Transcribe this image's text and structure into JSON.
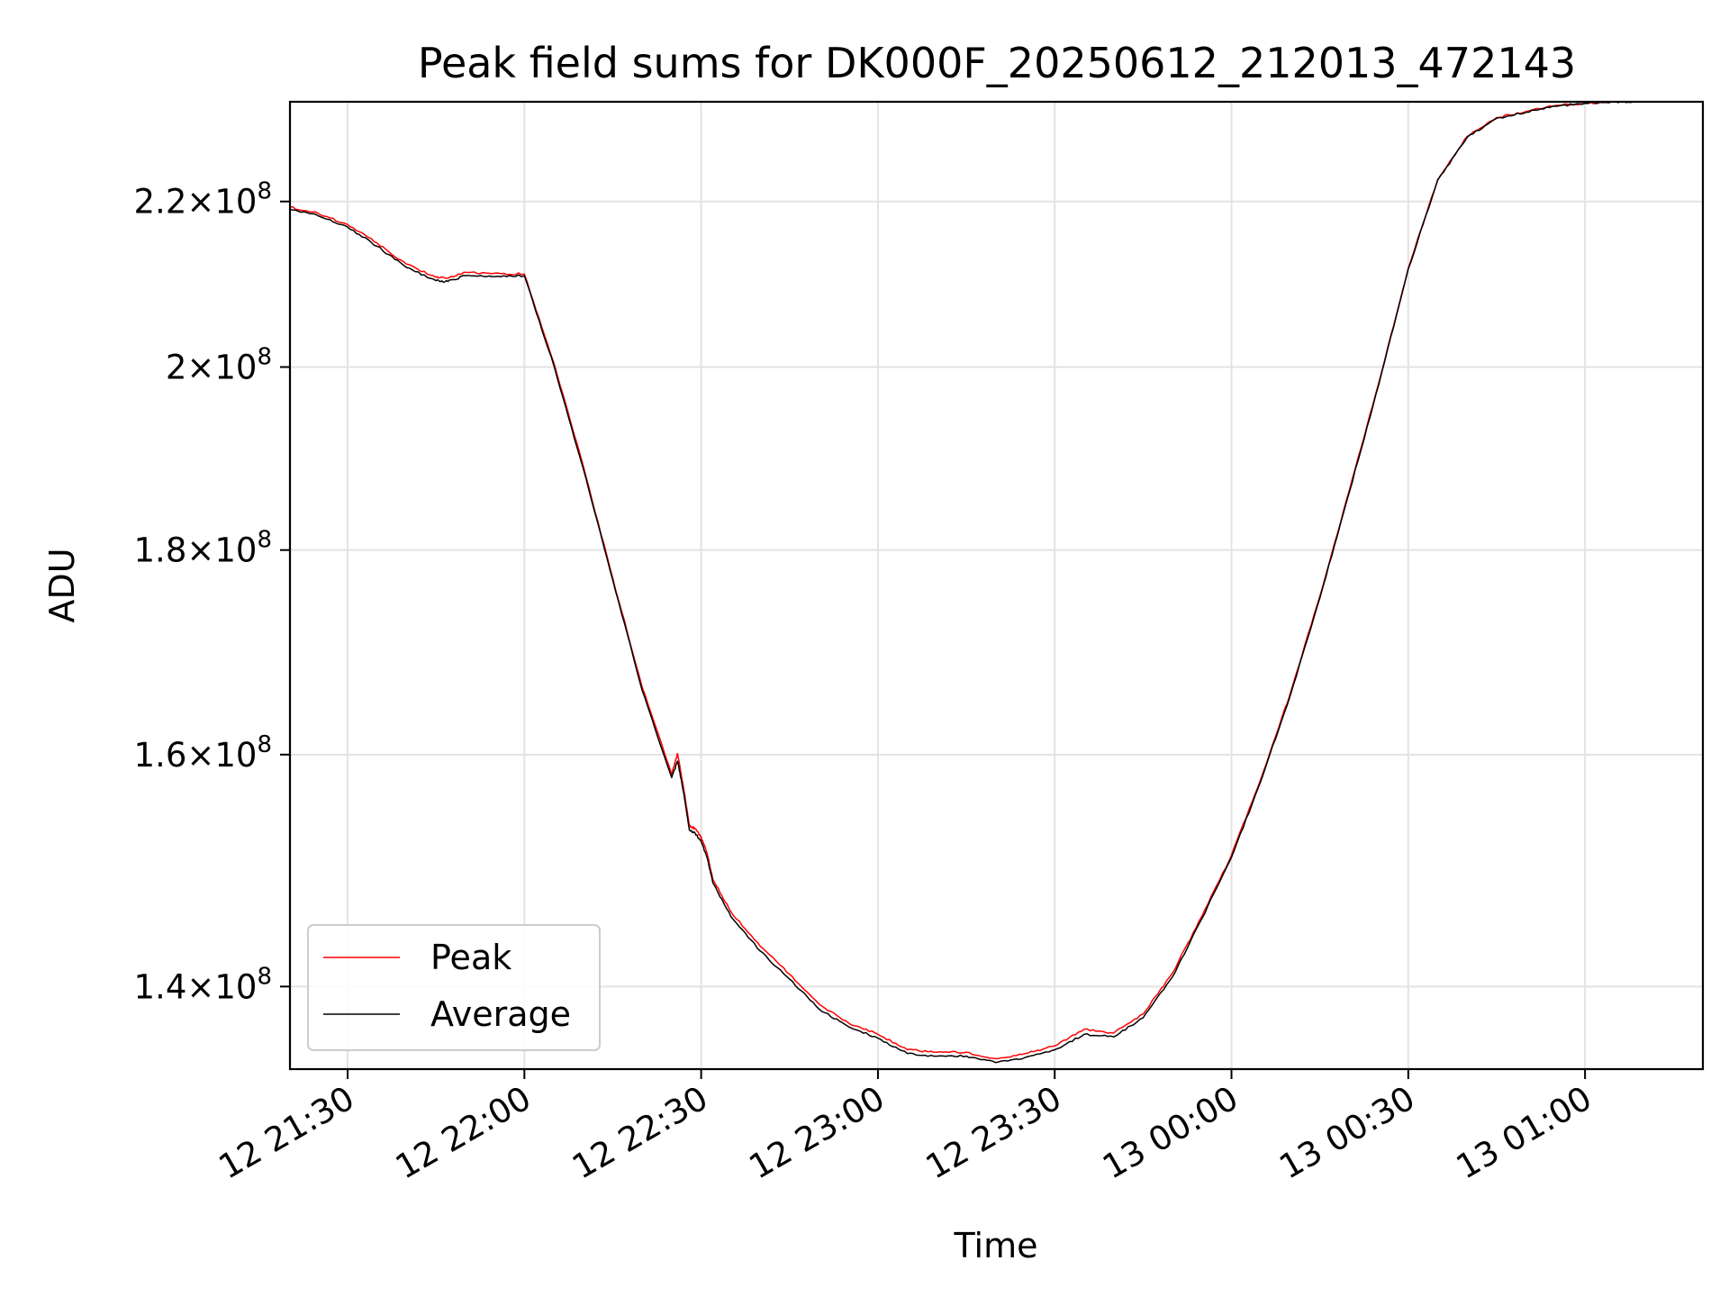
{
  "chart_data": {
    "type": "line",
    "title": "Peak field sums for DK000F_20250612_212013_472143",
    "xlabel": "Time",
    "ylabel": "ADU",
    "y_scale": "log",
    "grid": true,
    "legend_placement": "lower-left",
    "xlim": [
      "2025-06-12 21:20:13",
      "2025-06-13 01:20:00"
    ],
    "ylim": [
      133500000,
      233000000
    ],
    "x_ticks": [
      {
        "value": "2025-06-12 21:30",
        "label": "12 21:30"
      },
      {
        "value": "2025-06-12 22:00",
        "label": "12 22:00"
      },
      {
        "value": "2025-06-12 22:30",
        "label": "12 22:30"
      },
      {
        "value": "2025-06-12 23:00",
        "label": "12 23:00"
      },
      {
        "value": "2025-06-12 23:30",
        "label": "12 23:30"
      },
      {
        "value": "2025-06-13 00:00",
        "label": "13 00:00"
      },
      {
        "value": "2025-06-13 00:30",
        "label": "13 00:30"
      },
      {
        "value": "2025-06-13 01:00",
        "label": "13 01:00"
      }
    ],
    "y_ticks": [
      {
        "value": 140000000,
        "mantissa": "1.4",
        "exponent": "8"
      },
      {
        "value": 160000000,
        "mantissa": "1.6",
        "exponent": "8"
      },
      {
        "value": 180000000,
        "mantissa": "1.8",
        "exponent": "8"
      },
      {
        "value": 200000000,
        "mantissa": "2",
        "exponent": "8"
      },
      {
        "value": 220000000,
        "mantissa": "2.2",
        "exponent": "8"
      }
    ],
    "x": [
      "2025-06-12 21:20:13",
      "2025-06-12 21:25",
      "2025-06-12 21:30",
      "2025-06-12 21:35",
      "2025-06-12 21:40",
      "2025-06-12 21:45",
      "2025-06-12 21:47",
      "2025-06-12 21:50",
      "2025-06-12 21:55",
      "2025-06-12 22:00",
      "2025-06-12 22:05",
      "2025-06-12 22:10",
      "2025-06-12 22:15",
      "2025-06-12 22:20",
      "2025-06-12 22:25",
      "2025-06-12 22:26",
      "2025-06-12 22:27",
      "2025-06-12 22:28",
      "2025-06-12 22:29",
      "2025-06-12 22:30",
      "2025-06-12 22:31",
      "2025-06-12 22:32",
      "2025-06-12 22:35",
      "2025-06-12 22:40",
      "2025-06-12 22:45",
      "2025-06-12 22:50",
      "2025-06-12 22:55",
      "2025-06-12 23:00",
      "2025-06-12 23:05",
      "2025-06-12 23:10",
      "2025-06-12 23:15",
      "2025-06-12 23:20",
      "2025-06-12 23:25",
      "2025-06-12 23:30",
      "2025-06-12 23:35",
      "2025-06-12 23:40",
      "2025-06-12 23:45",
      "2025-06-12 23:50",
      "2025-06-12 23:55",
      "2025-06-13 00:00",
      "2025-06-13 00:05",
      "2025-06-13 00:10",
      "2025-06-13 00:15",
      "2025-06-13 00:20",
      "2025-06-13 00:25",
      "2025-06-13 00:30",
      "2025-06-13 00:35",
      "2025-06-13 00:40",
      "2025-06-13 00:45",
      "2025-06-13 00:50",
      "2025-06-13 00:55",
      "2025-06-13 01:00",
      "2025-06-13 01:05",
      "2025-06-13 01:08"
    ],
    "series": [
      {
        "name": "Peak",
        "color": "#ff0000",
        "values": [
          219300000,
          218500000,
          217100000,
          214800000,
          212200000,
          210600000,
          210500000,
          211200000,
          211100000,
          211000000,
          200500000,
          188900000,
          177100000,
          166300000,
          158200000,
          160100000,
          157000000,
          153600000,
          153300000,
          152600000,
          151200000,
          148900000,
          146200000,
          143300000,
          141000000,
          138600000,
          137100000,
          136200000,
          135000000,
          134800000,
          134800000,
          134300000,
          134700000,
          135300000,
          136600000,
          136300000,
          137800000,
          141100000,
          145800000,
          151000000,
          157800000,
          165800000,
          175300000,
          186300000,
          198200000,
          211700000,
          222800000,
          228400000,
          230900000,
          231700000,
          232500000,
          232800000,
          233000000,
          233000000
        ]
      },
      {
        "name": "Average",
        "color": "#000000",
        "values": [
          219000000,
          218200000,
          216800000,
          214400000,
          211800000,
          210200000,
          210100000,
          210800000,
          210700000,
          210800000,
          200200000,
          188600000,
          176900000,
          166000000,
          157900000,
          159400000,
          156600000,
          153200000,
          152900000,
          152200000,
          150800000,
          148600000,
          145800000,
          142900000,
          140600000,
          138200000,
          136800000,
          135900000,
          134700000,
          134500000,
          134500000,
          134000000,
          134400000,
          135000000,
          136200000,
          136000000,
          137500000,
          140800000,
          145600000,
          150800000,
          157600000,
          165600000,
          175100000,
          186100000,
          198000000,
          211600000,
          222700000,
          228300000,
          230800000,
          231600000,
          232400000,
          232800000,
          233000000,
          233000000
        ]
      }
    ]
  }
}
